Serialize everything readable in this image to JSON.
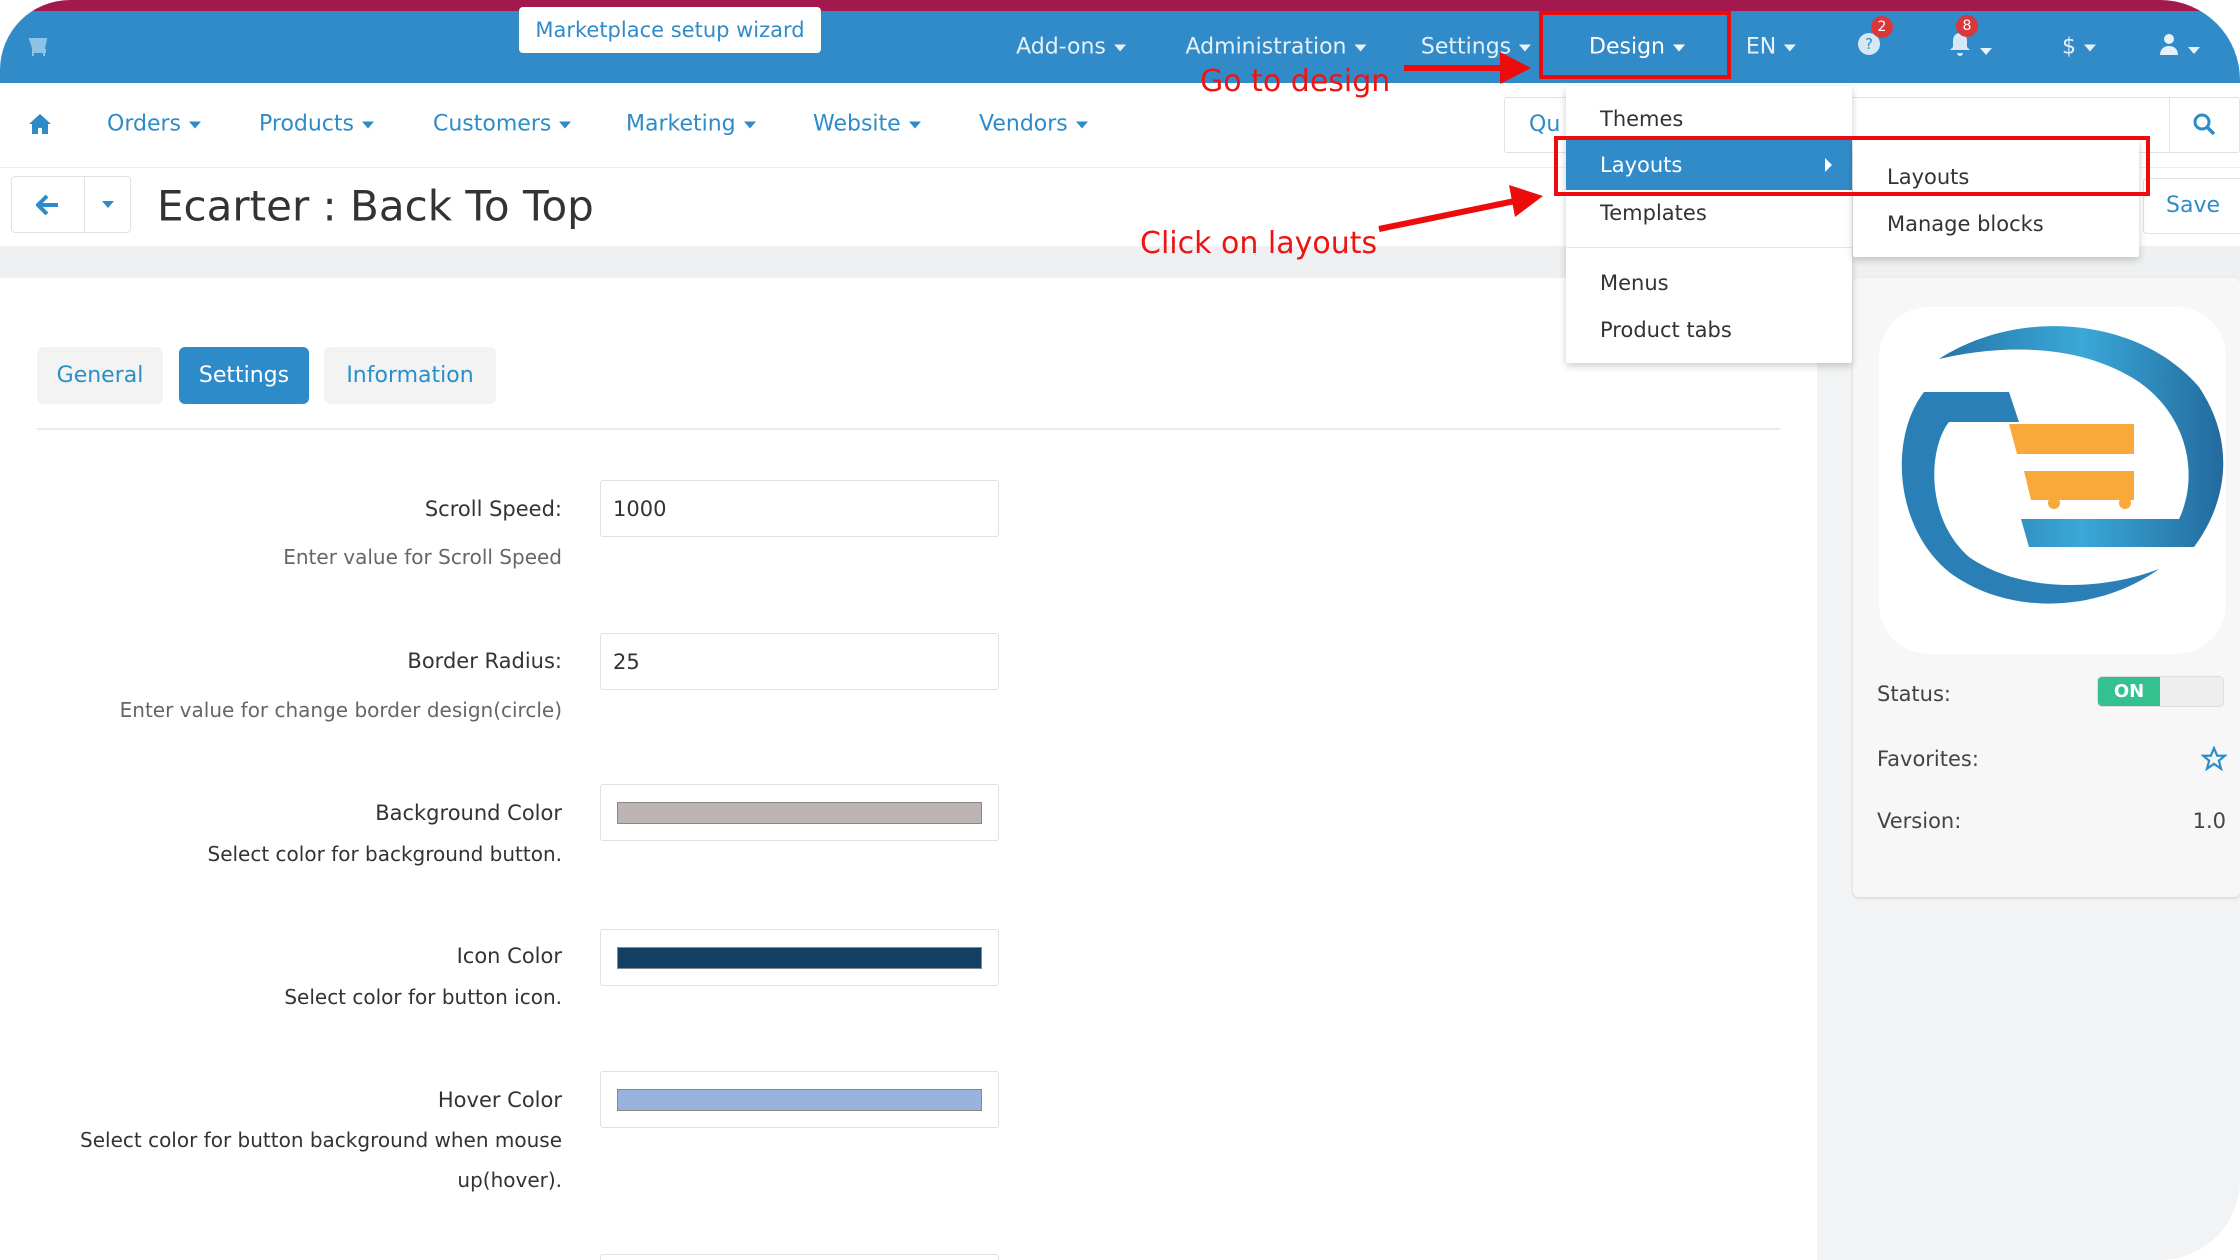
{
  "topbar": {
    "wizard_label": "Marketplace setup wizard",
    "items": [
      {
        "label": "Add-ons"
      },
      {
        "label": "Administration"
      },
      {
        "label": "Settings"
      },
      {
        "label": "Design"
      },
      {
        "label": "EN"
      },
      {
        "label": "$"
      }
    ],
    "help_badge": "2",
    "notifications_badge": "8",
    "icons": [
      "cart-icon",
      "help-icon",
      "bell-icon",
      "user-icon"
    ]
  },
  "nav": {
    "items": [
      {
        "label": "Orders"
      },
      {
        "label": "Products"
      },
      {
        "label": "Customers"
      },
      {
        "label": "Marketing"
      },
      {
        "label": "Website"
      },
      {
        "label": "Vendors"
      }
    ],
    "search_placeholder": "Qu"
  },
  "page": {
    "title": "Ecarter : Back To Top",
    "save_label": "Save"
  },
  "tabs": [
    {
      "label": "General"
    },
    {
      "label": "Settings",
      "active": true
    },
    {
      "label": "Information"
    }
  ],
  "form": {
    "scroll_speed": {
      "label": "Scroll Speed:",
      "value": "1000",
      "help": "Enter value for Scroll Speed"
    },
    "border_radius": {
      "label": "Border Radius:",
      "value": "25",
      "help": "Enter value for change border design(circle)"
    },
    "background_color": {
      "label": "Background Color",
      "help": "Select color for background button.",
      "color": "#bdb5b4"
    },
    "icon_color": {
      "label": "Icon Color",
      "help": "Select color for button icon.",
      "color": "#123f62"
    },
    "hover_color": {
      "label": "Hover Color",
      "help_line1": "Select color for button background when mouse",
      "help_line2": "up(hover).",
      "color": "#98b4dc"
    }
  },
  "design_menu": {
    "items": [
      {
        "label": "Themes"
      },
      {
        "label": "Layouts",
        "highlighted": true
      },
      {
        "label": "Templates"
      },
      {
        "label": "Menus"
      },
      {
        "label": "Product tabs"
      }
    ],
    "submenu": [
      {
        "label": "Layouts"
      },
      {
        "label": "Manage blocks"
      }
    ]
  },
  "annotations": {
    "go_to_design": "Go to design",
    "click_on_layouts": "Click on layouts",
    "color": "#ee0b0b"
  },
  "addon_panel": {
    "status_label": "Status:",
    "status_value": "ON",
    "favorites_label": "Favorites:",
    "version_label": "Version:",
    "version_value": "1.0"
  },
  "colors": {
    "primary": "#318bc8",
    "top_strip": "#a3194e",
    "toggle_on": "#35c08f",
    "logo_orange": "#f8a93a"
  }
}
